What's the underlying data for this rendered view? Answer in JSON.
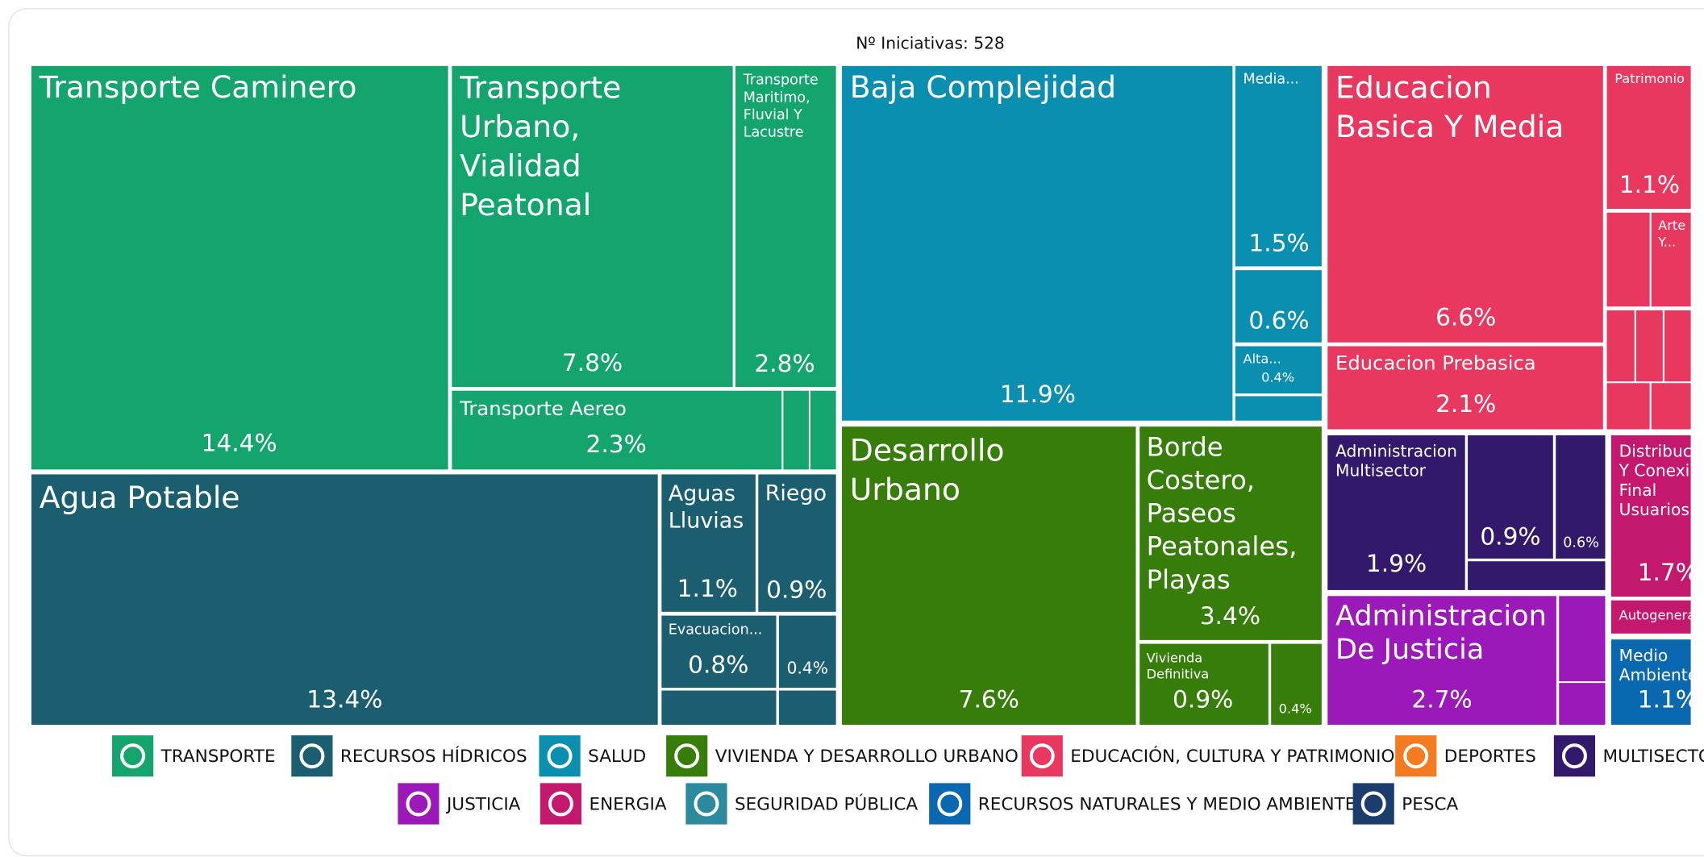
{
  "chart_data": {
    "type": "treemap",
    "subtitle": "Nº Iniciativas: 528",
    "series": [
      {
        "name": "TRANSPORTE",
        "color": "#14a56f",
        "categories": [
          "Transporte Caminero",
          "Transporte Urbano, Vialidad Peatonal",
          "Transporte Maritimo, Fluvial Y Lacustre",
          "Transporte Aereo"
        ],
        "values": [
          14.4,
          7.8,
          2.8,
          2.3
        ],
        "value_labels": [
          "14.4%",
          "7.8%",
          "2.8%",
          "2.3%"
        ]
      },
      {
        "name": "RECURSOS HÍDRICOS",
        "color": "#1b5e70",
        "categories": [
          "Agua Potable",
          "Aguas Lluvias",
          "Riego",
          "Evacuacion...",
          null
        ],
        "values": [
          13.4,
          1.1,
          0.9,
          0.8,
          0.4
        ],
        "value_labels": [
          "13.4%",
          "1.1%",
          "0.9%",
          "0.8%",
          "0.4%"
        ]
      },
      {
        "name": "SALUD",
        "color": "#0a8fb0",
        "categories": [
          "Baja Complejidad",
          "Media...",
          null,
          "Alta..."
        ],
        "values": [
          11.9,
          1.5,
          0.6,
          0.4
        ],
        "value_labels": [
          "11.9%",
          "1.5%",
          "0.6%",
          "0.4%"
        ]
      },
      {
        "name": "VIVIENDA Y DESARROLLO URBANO",
        "color": "#367d0a",
        "categories": [
          "Desarrollo Urbano",
          "Borde Costero, Paseos Peatonales, Playas",
          "Vivienda Definitiva",
          null
        ],
        "values": [
          7.6,
          3.4,
          0.9,
          0.4
        ],
        "value_labels": [
          "7.6%",
          "3.4%",
          "0.9%",
          "0.4%"
        ]
      },
      {
        "name": "EDUCACIÓN, CULTURA Y PATRIMONIO",
        "color": "#e8385f",
        "categories": [
          "Educacion Basica Y Media",
          "Educacion Prebasica",
          "Patrimonio",
          "Arte Y..."
        ],
        "values": [
          6.6,
          2.1,
          1.1,
          0.3
        ],
        "value_labels": [
          "6.6%",
          "2.1%",
          "1.1%",
          null
        ]
      },
      {
        "name": "DEPORTES",
        "color": "#f47b20",
        "categories": [],
        "values": [],
        "value_labels": []
      },
      {
        "name": "MULTISECTORIAL",
        "color": "#33196b",
        "categories": [
          "Administracion Multisector",
          null,
          null
        ],
        "values": [
          1.9,
          0.9,
          0.6
        ],
        "value_labels": [
          "1.9%",
          "0.9%",
          "0.6%"
        ]
      },
      {
        "name": "JUSTICIA",
        "color": "#9b19b8",
        "categories": [
          "Administracion De Justicia"
        ],
        "values": [
          2.7
        ],
        "value_labels": [
          "2.7%"
        ]
      },
      {
        "name": "ENERGIA",
        "color": "#c4186f",
        "categories": [
          "Distribuc Y Conexi Final Usuarios",
          "Autogenera"
        ],
        "values": [
          1.7,
          0.2
        ],
        "value_labels": [
          "1.7%",
          null
        ]
      },
      {
        "name": "SEGURIDAD PÚBLICA",
        "color": "#2b8a9e",
        "categories": [],
        "values": [],
        "value_labels": []
      },
      {
        "name": "RECURSOS NATURALES Y MEDIO AMBIENTE",
        "color": "#0a68b0",
        "categories": [
          "Medio Ambiente"
        ],
        "values": [
          1.1
        ],
        "value_labels": [
          "1.1%"
        ]
      },
      {
        "name": "PESCA",
        "color": "#1a3d6e",
        "categories": [],
        "values": [],
        "value_labels": []
      }
    ]
  }
}
